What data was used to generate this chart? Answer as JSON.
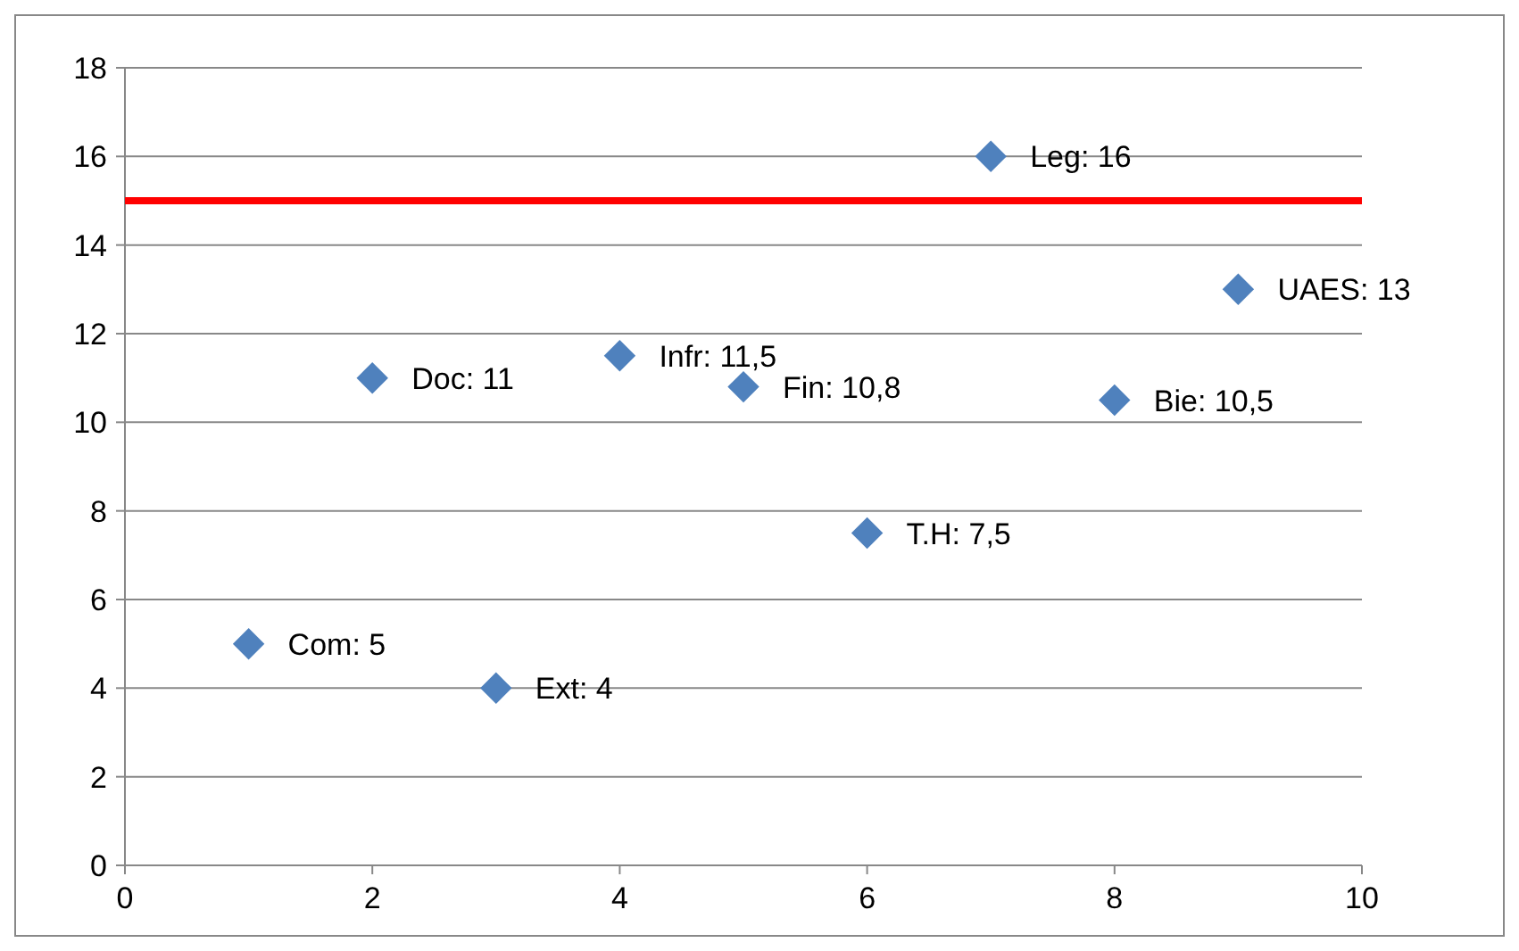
{
  "chart_data": {
    "type": "scatter",
    "x": [
      1,
      2,
      3,
      4,
      5,
      6,
      7,
      8,
      9
    ],
    "values": [
      5,
      11,
      4,
      11.5,
      10.8,
      7.5,
      16,
      10.5,
      13
    ],
    "value_labels": [
      "Com: 5",
      "Doc: 11",
      "Ext: 4",
      "Infr: 11,5",
      "Fin: 10,8",
      "T.H: 7,5",
      "Leg: 16",
      "Bie: 10,5",
      "UAES: 13"
    ],
    "color": "#4f81bd",
    "marker": "diamond",
    "xlim": [
      0,
      10
    ],
    "xticks": [
      0,
      2,
      4,
      6,
      8,
      10
    ],
    "ylim": [
      0,
      18
    ],
    "yticks": [
      0,
      2,
      4,
      6,
      8,
      10,
      12,
      14,
      16,
      18
    ],
    "grid": "y",
    "ref_lines": [
      {
        "axis": "y",
        "value": 15,
        "color": "#ff0000",
        "line_style": "solid"
      }
    ]
  }
}
